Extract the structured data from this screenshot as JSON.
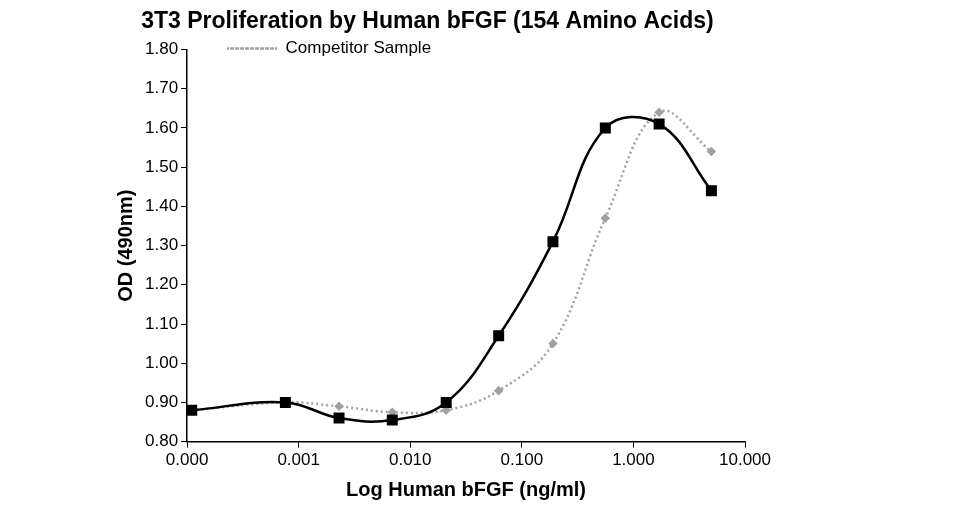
{
  "chart_data": {
    "type": "line",
    "title": "3T3 Proliferation by Human bFGF (154 Amino Acids)",
    "x_label": "Log Human bFGF (ng/ml)",
    "y_label": "OD (490nm)",
    "x": [
      0.00011,
      0.00076,
      0.0023,
      0.0069,
      0.021,
      0.062,
      0.19,
      0.56,
      1.7,
      5.0
    ],
    "series": [
      {
        "color": "#000000",
        "marker": "square",
        "line_style": "solid",
        "values": [
          0.88,
          0.9,
          0.86,
          0.855,
          0.9,
          1.07,
          1.31,
          1.6,
          1.61,
          1.44
        ]
      },
      {
        "name": "Competitor Sample",
        "color": "#a0a0a0",
        "marker": "diamond",
        "line_style": "dotted",
        "values": [
          0.88,
          0.9,
          0.89,
          0.875,
          0.88,
          0.93,
          1.05,
          1.37,
          1.64,
          1.54
        ]
      }
    ],
    "log": "x",
    "xlim": [
      0.0001,
      10
    ],
    "xticks": [
      {
        "value": 0.0001,
        "label": "0.000"
      },
      {
        "value": 0.001,
        "label": "0.001"
      },
      {
        "value": 0.01,
        "label": "0.010"
      },
      {
        "value": 0.1,
        "label": "0.100"
      },
      {
        "value": 1,
        "label": "1.000"
      },
      {
        "value": 10,
        "label": "10.000"
      }
    ],
    "ylim": [
      0.8,
      1.8
    ],
    "yticks": [
      {
        "value": 0.8,
        "label": "0.80"
      },
      {
        "value": 0.9,
        "label": "0.90"
      },
      {
        "value": 1.0,
        "label": "1.00"
      },
      {
        "value": 1.1,
        "label": "1.10"
      },
      {
        "value": 1.2,
        "label": "1.20"
      },
      {
        "value": 1.3,
        "label": "1.30"
      },
      {
        "value": 1.4,
        "label": "1.40"
      },
      {
        "value": 1.5,
        "label": "1.50"
      },
      {
        "value": 1.6,
        "label": "1.60"
      },
      {
        "value": 1.7,
        "label": "1.70"
      },
      {
        "value": 1.8,
        "label": "1.80"
      }
    ],
    "grid": false,
    "legend": "upper left"
  }
}
